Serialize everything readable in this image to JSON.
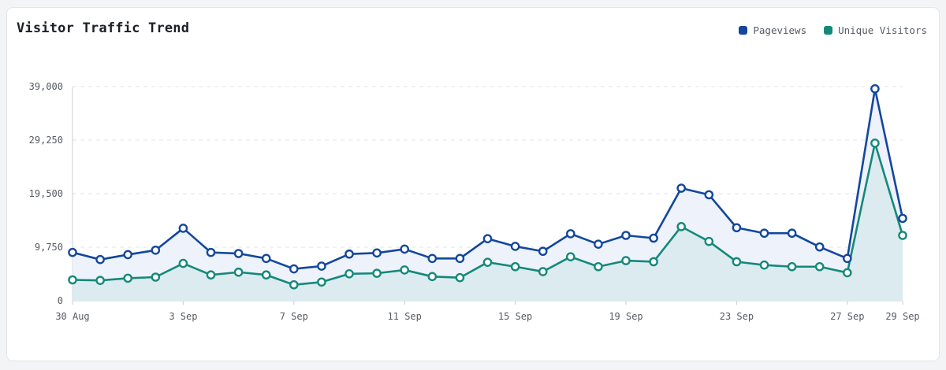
{
  "header": {
    "title": "Visitor Traffic Trend"
  },
  "legend": [
    {
      "name": "Pageviews",
      "color": "#12479c"
    },
    {
      "name": "Unique Visitors",
      "color": "#14897a"
    }
  ],
  "chart_data": {
    "type": "area",
    "title": "Visitor Traffic Trend",
    "x": [
      "30 Aug",
      "31 Aug",
      "1 Sep",
      "2 Sep",
      "3 Sep",
      "4 Sep",
      "5 Sep",
      "6 Sep",
      "7 Sep",
      "8 Sep",
      "9 Sep",
      "10 Sep",
      "11 Sep",
      "12 Sep",
      "13 Sep",
      "14 Sep",
      "15 Sep",
      "16 Sep",
      "17 Sep",
      "18 Sep",
      "19 Sep",
      "20 Sep",
      "21 Sep",
      "22 Sep",
      "23 Sep",
      "24 Sep",
      "25 Sep",
      "26 Sep",
      "27 Sep",
      "28 Sep",
      "29 Sep"
    ],
    "x_tick_labels": [
      "30 Aug",
      "3 Sep",
      "7 Sep",
      "11 Sep",
      "15 Sep",
      "19 Sep",
      "23 Sep",
      "27 Sep",
      "29 Sep"
    ],
    "y_tick_labels": [
      "0",
      "9,750",
      "19,500",
      "29,250",
      "39,000"
    ],
    "ylim": [
      0,
      39000
    ],
    "grid": "horizontal dashed",
    "legend_position": "top-right",
    "series": [
      {
        "name": "Pageviews",
        "color": "#12479c",
        "values": [
          8800,
          7500,
          8400,
          9200,
          13200,
          8800,
          8600,
          7700,
          5800,
          6300,
          8500,
          8700,
          9400,
          7700,
          7700,
          11300,
          9900,
          9000,
          12200,
          10300,
          11900,
          11400,
          20500,
          19300,
          13300,
          12300,
          12300,
          9800,
          7700,
          38600,
          15000
        ]
      },
      {
        "name": "Unique Visitors",
        "color": "#14897a",
        "values": [
          3800,
          3700,
          4100,
          4300,
          6800,
          4700,
          5200,
          4700,
          2900,
          3400,
          4900,
          5000,
          5600,
          4400,
          4200,
          7000,
          6200,
          5300,
          8000,
          6200,
          7300,
          7100,
          13500,
          10800,
          7100,
          6500,
          6200,
          6200,
          5100,
          28700,
          11900
        ]
      }
    ]
  }
}
